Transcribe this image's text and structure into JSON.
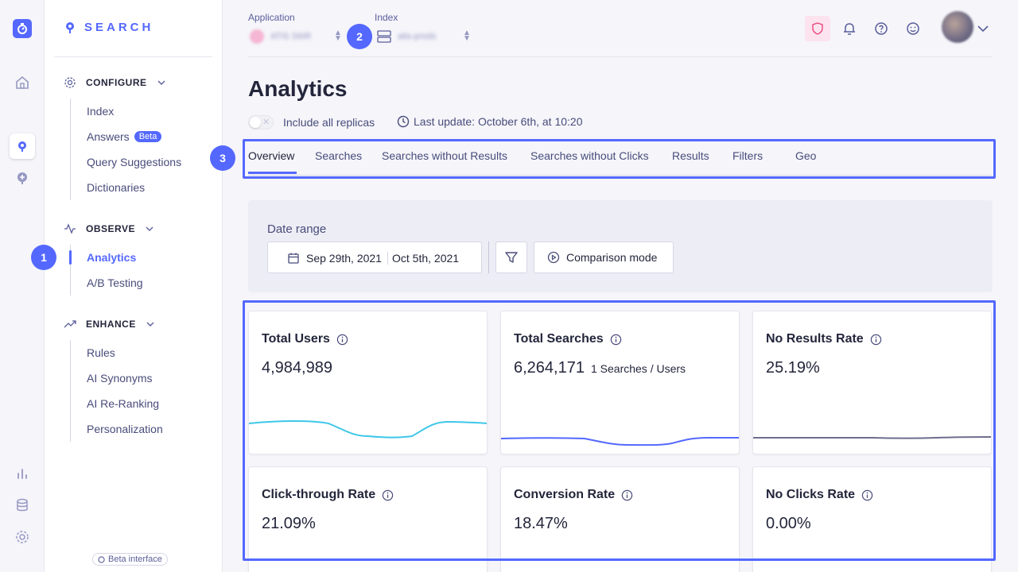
{
  "nav": {
    "brand": "SEARCH",
    "sections": [
      {
        "label": "CONFIGURE",
        "items": [
          {
            "label": "Index"
          },
          {
            "label": "Answers",
            "badge": "Beta"
          },
          {
            "label": "Query Suggestions"
          },
          {
            "label": "Dictionaries"
          }
        ]
      },
      {
        "label": "OBSERVE",
        "items": [
          {
            "label": "Analytics",
            "active": true
          },
          {
            "label": "A/B Testing"
          }
        ]
      },
      {
        "label": "ENHANCE",
        "items": [
          {
            "label": "Rules"
          },
          {
            "label": "AI Synonyms"
          },
          {
            "label": "AI Re-Ranking"
          },
          {
            "label": "Personalization"
          }
        ]
      }
    ],
    "beta_interface": "Beta interface"
  },
  "header": {
    "application_label": "Application",
    "application_value": "ATIS S6IR",
    "index_label": "Index",
    "index_value": "atis-prods"
  },
  "page": {
    "title": "Analytics",
    "replicas_label": "Include all replicas",
    "last_update": "Last update: October 6th, at 10:20",
    "tabs": [
      "Overview",
      "Searches",
      "Searches without Results",
      "Searches without Clicks",
      "Results",
      "Filters",
      "Geo"
    ],
    "active_tab": "Overview",
    "date_range_label": "Date range",
    "date_start": "Sep 29th, 2021",
    "date_end": "Oct 5th, 2021",
    "comparison_label": "Comparison mode"
  },
  "metrics": [
    {
      "title": "Total Users",
      "value": "4,984,989",
      "sub": "",
      "spark_color": "#3ec7e8"
    },
    {
      "title": "Total Searches",
      "value": "6,264,171",
      "sub": "1 Searches / Users",
      "spark_color": "#5468ff"
    },
    {
      "title": "No Results Rate",
      "value": "25.19%",
      "sub": "",
      "spark_color": "#6e6d8e"
    },
    {
      "title": "Click-through Rate",
      "value": "21.09%",
      "sub": ""
    },
    {
      "title": "Conversion Rate",
      "value": "18.47%",
      "sub": ""
    },
    {
      "title": "No Clicks Rate",
      "value": "0.00%",
      "sub": ""
    }
  ],
  "annotations": [
    "1",
    "2",
    "3"
  ],
  "colors": {
    "accent": "#5468ff",
    "text": "#23263b"
  }
}
